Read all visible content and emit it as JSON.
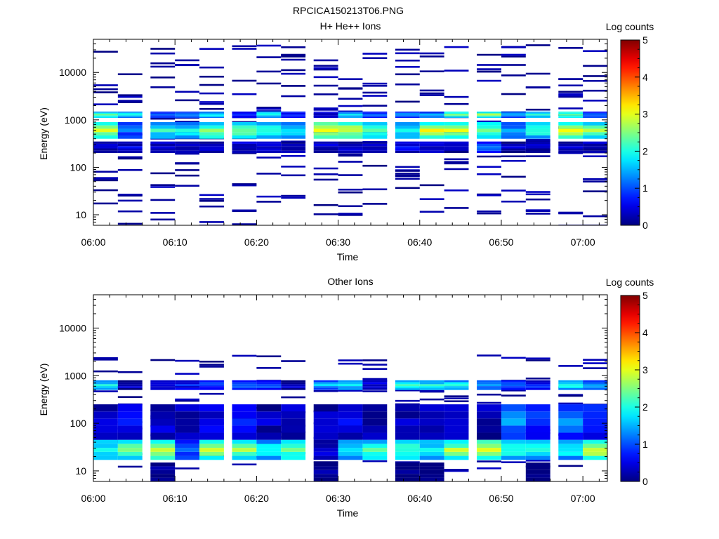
{
  "figure": {
    "title": "RPCICA150213T06.PNG"
  },
  "chart_data": [
    {
      "type": "heatmap",
      "title": "H+ He++ Ions",
      "xlabel": "Time",
      "ylabel": "Energy (eV)",
      "x_ticks": [
        "06:00",
        "06:10",
        "06:20",
        "06:30",
        "06:40",
        "06:50",
        "07:00"
      ],
      "y_ticks": [
        "10",
        "100",
        "1000",
        "10000"
      ],
      "y_scale": "log",
      "ylim": [
        6,
        50000
      ],
      "xlim": [
        "06:00",
        "07:03"
      ],
      "colorbar": {
        "label": "Log counts",
        "ticks": [
          "0",
          "1",
          "2",
          "3",
          "4",
          "5"
        ],
        "range": [
          0,
          5
        ]
      },
      "time_bins": [
        "06:00",
        "06:03",
        "06:07",
        "06:10",
        "06:13",
        "06:17",
        "06:20",
        "06:23",
        "06:27",
        "06:30",
        "06:33",
        "06:37",
        "06:40",
        "06:43",
        "06:47",
        "06:50",
        "06:53",
        "06:57",
        "07:00"
      ],
      "bands": [
        {
          "e_min": 400,
          "e_max": 900,
          "log_counts": [
            2.8,
            1.2,
            2.0,
            2.0,
            2.6,
            2.5,
            2.1,
            1.8,
            3.2,
            3.0,
            2.3,
            2.0,
            3.0,
            3.0,
            2.5,
            1.5,
            2.2,
            3.1,
            2.7
          ]
        },
        {
          "e_min": 1100,
          "e_max": 1500,
          "log_counts": [
            2.3,
            2.0,
            1.0,
            1.3,
            2.0,
            1.0,
            2.0,
            0.8,
            0.5,
            1.8,
            1.0,
            1.3,
            1.5,
            2.5,
            2.8,
            1.4,
            2.2,
            2.6,
            1.3
          ]
        },
        {
          "e_min": 200,
          "e_max": 350,
          "log_counts": [
            0.3,
            0.5,
            0.4,
            0.3,
            0.3,
            0.5,
            0.3,
            0.4,
            0.4,
            0.3,
            0.3,
            0.5,
            0.4,
            0.3,
            1.0,
            0.3,
            0.3,
            0.4,
            0.3
          ]
        }
      ]
    },
    {
      "type": "heatmap",
      "title": "Other Ions",
      "xlabel": "Time",
      "ylabel": "Energy (eV)",
      "x_ticks": [
        "06:00",
        "06:10",
        "06:20",
        "06:30",
        "06:40",
        "06:50",
        "07:00"
      ],
      "y_ticks": [
        "10",
        "100",
        "1000",
        "10000"
      ],
      "y_scale": "log",
      "ylim": [
        6,
        50000
      ],
      "xlim": [
        "06:00",
        "07:03"
      ],
      "colorbar": {
        "label": "Log counts",
        "ticks": [
          "0",
          "1",
          "2",
          "3",
          "4",
          "5"
        ],
        "range": [
          0,
          5
        ]
      },
      "time_bins": [
        "06:00",
        "06:03",
        "06:07",
        "06:10",
        "06:13",
        "06:17",
        "06:20",
        "06:23",
        "06:27",
        "06:30",
        "06:33",
        "06:37",
        "06:40",
        "06:43",
        "06:47",
        "06:50",
        "06:53",
        "06:57",
        "07:00"
      ],
      "bands": [
        {
          "e_min": 17,
          "e_max": 45,
          "log_counts": [
            2.2,
            2.5,
            2.8,
            1.2,
            3.0,
            2.8,
            2.0,
            2.6,
            0.5,
            2.0,
            2.4,
            2.3,
            2.0,
            2.8,
            3.0,
            2.2,
            2.0,
            2.0,
            3.0
          ]
        },
        {
          "e_min": 45,
          "e_max": 250,
          "log_counts": [
            0.4,
            0.8,
            0.5,
            0.3,
            0.5,
            0.6,
            0.3,
            0.4,
            0.3,
            0.5,
            0.3,
            0.3,
            0.4,
            0.4,
            0.3,
            1.3,
            1.0,
            1.2,
            0.9
          ]
        },
        {
          "e_min": 500,
          "e_max": 800,
          "log_counts": [
            2.0,
            0.3,
            0.3,
            0.7,
            1.0,
            1.0,
            1.1,
            0.3,
            1.6,
            1.8,
            0.4,
            2.0,
            2.0,
            2.0,
            1.5,
            1.0,
            0.8,
            2.2,
            1.6
          ]
        },
        {
          "e_min": 6,
          "e_max": 15,
          "log_counts": [
            0,
            0,
            0.05,
            0,
            0,
            0,
            0,
            0,
            0.1,
            0,
            0,
            0.05,
            0.05,
            0,
            0,
            0,
            0.05,
            0,
            0
          ]
        }
      ]
    }
  ]
}
